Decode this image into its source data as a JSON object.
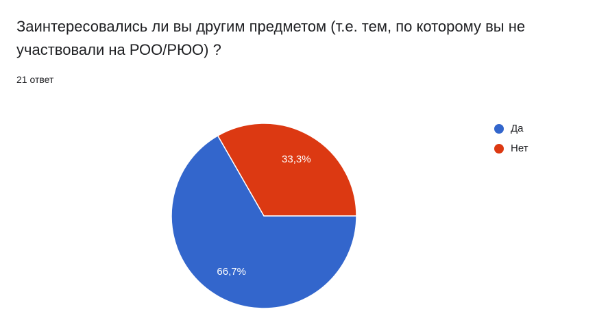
{
  "chart_data": {
    "type": "pie",
    "title": "Заинтересовались ли вы другим предметом (т.е. тем, по которому вы не участвовали на РОО/РЮО) ?",
    "subtitle": "21 ответ",
    "categories": [
      "Да",
      "Нет"
    ],
    "values": [
      66.7,
      33.3
    ],
    "value_labels": [
      "66,7%",
      "33,3%"
    ],
    "colors": [
      "#3366cc",
      "#dc3912"
    ],
    "legend": "right"
  }
}
